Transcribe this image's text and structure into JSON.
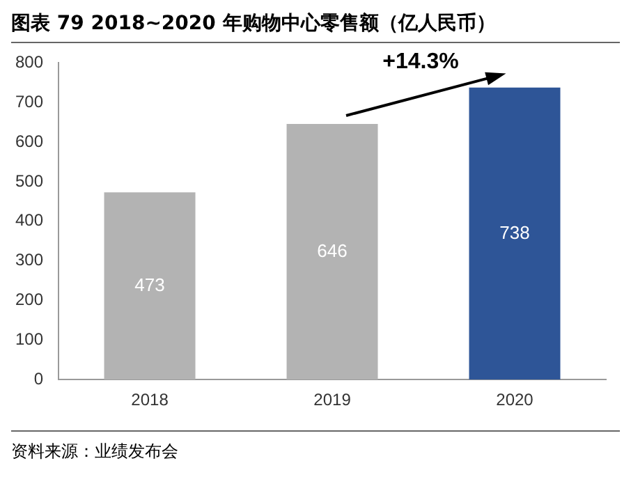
{
  "chart_data": {
    "type": "bar",
    "title": "图表 79  2018~2020 年购物中心零售额（亿人民币）",
    "categories": [
      "2018",
      "2019",
      "2020"
    ],
    "values": [
      473,
      646,
      738
    ],
    "colors": [
      "#b3b3b3",
      "#b3b3b3",
      "#2e5597"
    ],
    "ylim": [
      0,
      800
    ],
    "yticks": [
      0,
      100,
      200,
      300,
      400,
      500,
      600,
      700,
      800
    ],
    "grid": false,
    "legend": false,
    "data_labels": true,
    "annotations": [
      {
        "text": "+14.3%",
        "x": "2020",
        "y": 738
      },
      "资料来源：业绩发布会"
    ]
  }
}
